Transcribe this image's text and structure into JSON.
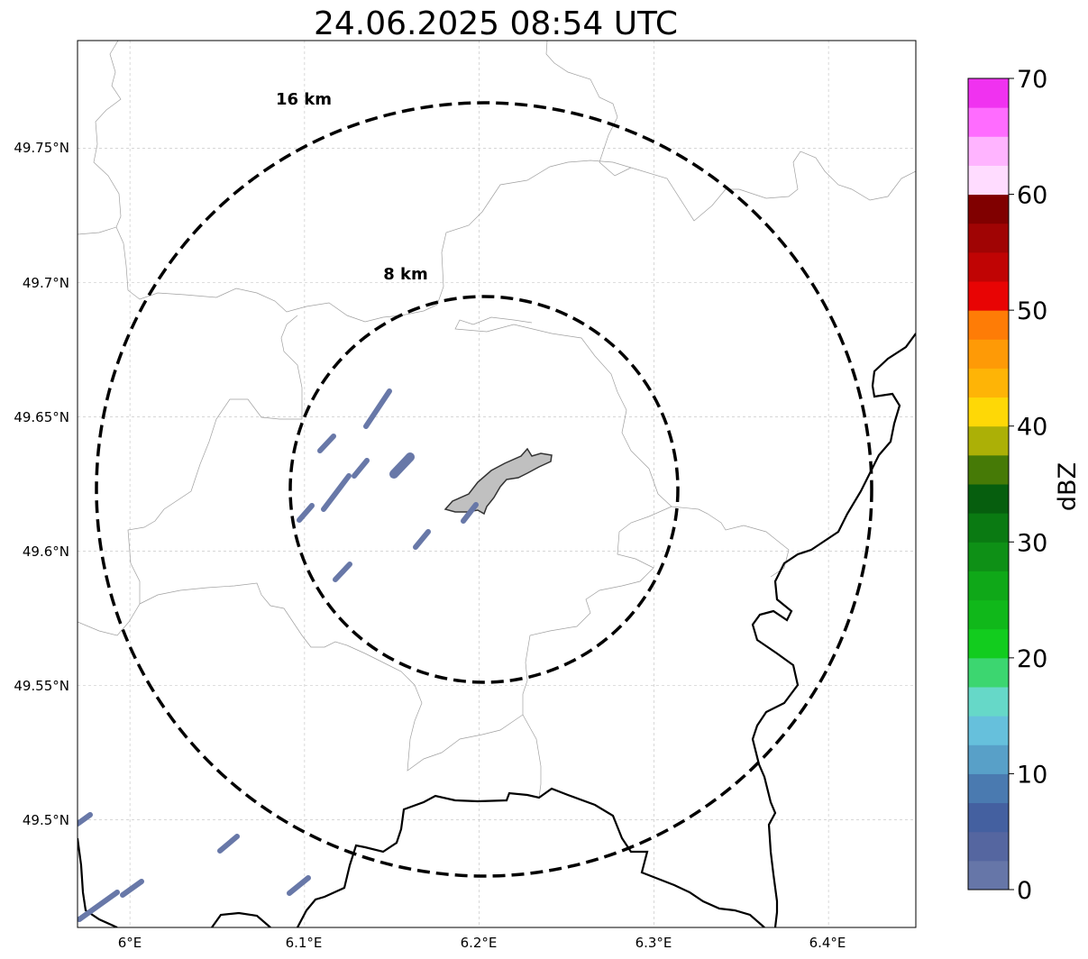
{
  "title": "24.06.2025 08:54 UTC",
  "map": {
    "lon_range": [
      5.97,
      6.45
    ],
    "lat_range": [
      49.46,
      49.79
    ],
    "lon_ticks": [
      {
        "value": 6.0,
        "label": "6°E"
      },
      {
        "value": 6.1,
        "label": "6.1°E"
      },
      {
        "value": 6.2,
        "label": "6.2°E"
      },
      {
        "value": 6.3,
        "label": "6.3°E"
      },
      {
        "value": 6.4,
        "label": "6.4°E"
      }
    ],
    "lat_ticks": [
      {
        "value": 49.5,
        "label": "49.5°N"
      },
      {
        "value": 49.55,
        "label": "49.55°N"
      },
      {
        "value": 49.6,
        "label": "49.6°N"
      },
      {
        "value": 49.65,
        "label": "49.65°N"
      },
      {
        "value": 49.7,
        "label": "49.7°N"
      },
      {
        "value": 49.75,
        "label": "49.75°N"
      }
    ],
    "gridlines": true,
    "range_rings": [
      {
        "radius_km": 8,
        "label": "8 km"
      },
      {
        "radius_km": 16,
        "label": "16 km"
      }
    ],
    "colors": {
      "rings": "#000000",
      "borders": "#000000",
      "admin_lines": "#a0a0a0",
      "gridlines": "#bfbfbf",
      "city_fill": "#c0c0c0",
      "echo_color": "#6878a8"
    }
  },
  "colorbar": {
    "label": "dBZ",
    "tick_labels": [
      "0",
      "10",
      "20",
      "30",
      "40",
      "50",
      "60",
      "70"
    ],
    "min": 0,
    "max": 70,
    "colors": [
      "#6676a8",
      "#5566a0",
      "#4460a0",
      "#4a7ab0",
      "#58a0c8",
      "#66c0dc",
      "#66d8c8",
      "#3cd670",
      "#12cc1e",
      "#10b81a",
      "#0fa818",
      "#0e9016",
      "#0a7a12",
      "#065e0e",
      "#467a06",
      "#acb006",
      "#fed806",
      "#feb406",
      "#fe9a06",
      "#fe7c06",
      "#e80404",
      "#c00404",
      "#a00404",
      "#800000",
      "#ffdcff",
      "#ffb4ff",
      "#ff6cff",
      "#f032f0"
    ]
  }
}
